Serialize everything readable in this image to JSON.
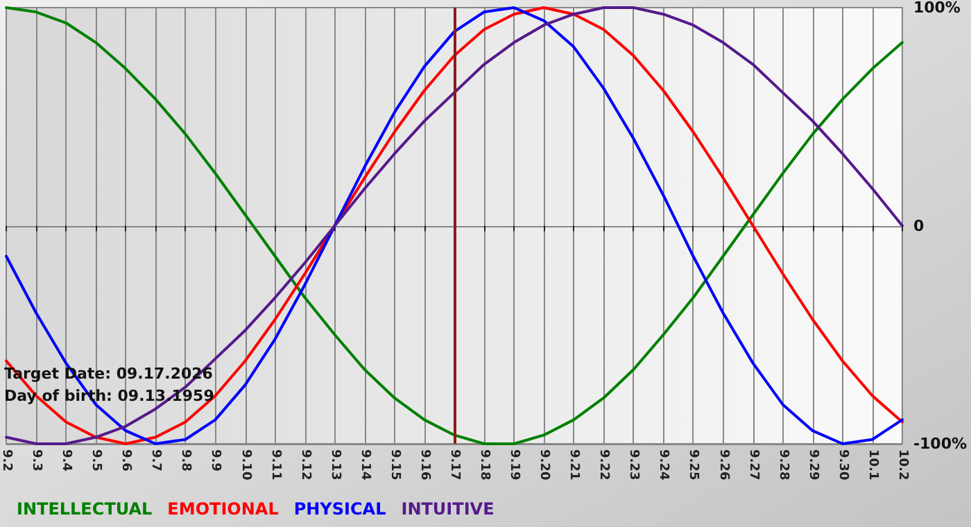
{
  "chart_data": {
    "type": "line",
    "categories": [
      "9.2",
      "9.3",
      "9.4",
      "9.5",
      "9.6",
      "9.7",
      "9.8",
      "9.9",
      "9.10",
      "9.11",
      "9.12",
      "9.13",
      "9.14",
      "9.15",
      "9.16",
      "9.17",
      "9.18",
      "9.19",
      "9.20",
      "9.21",
      "9.22",
      "9.23",
      "9.24",
      "9.25",
      "9.26",
      "9.27",
      "9.28",
      "9.29",
      "9.30",
      "10.1",
      "10.2"
    ],
    "series": [
      {
        "name": "INTELLECTUAL",
        "color": "#008000",
        "values": [
          100,
          98,
          93,
          84,
          72,
          58,
          42,
          24,
          5,
          -14,
          -33,
          -50,
          -66,
          -79,
          -89,
          -96,
          -100,
          -100,
          -96,
          -89,
          -79,
          -66,
          -50,
          -33,
          -14,
          5,
          24,
          42,
          58,
          72,
          84
        ]
      },
      {
        "name": "EMOTIONAL",
        "color": "#ff0000",
        "values": [
          -62,
          -78,
          -90,
          -97,
          -100,
          -97,
          -90,
          -78,
          -62,
          -43,
          -22,
          0,
          22,
          43,
          62,
          78,
          90,
          97,
          100,
          97,
          90,
          78,
          62,
          43,
          22,
          0,
          -22,
          -43,
          -62,
          -78,
          -90
        ]
      },
      {
        "name": "PHYSICAL",
        "color": "#0000ff",
        "values": [
          -14,
          -40,
          -63,
          -82,
          -94,
          -100,
          -98,
          -89,
          -73,
          -52,
          -27,
          0,
          27,
          52,
          73,
          89,
          98,
          100,
          94,
          82,
          63,
          40,
          14,
          -14,
          -40,
          -63,
          -82,
          -94,
          -100,
          -98,
          -89
        ]
      },
      {
        "name": "INTUITIVE",
        "color": "#551a8b",
        "values": [
          -97,
          -100,
          -100,
          -97,
          -92,
          -84,
          -74,
          -61,
          -48,
          -33,
          -17,
          0,
          17,
          33,
          48,
          61,
          74,
          84,
          92,
          97,
          100,
          100,
          97,
          92,
          84,
          74,
          61,
          48,
          33,
          17,
          0
        ]
      }
    ],
    "ylim": [
      -100,
      100
    ],
    "yticks": [
      {
        "value": -100,
        "label": "-100%"
      },
      0,
      {
        "value": 100,
        "label": "100%"
      }
    ],
    "grid": true,
    "legend": "bottom left",
    "marker": "none",
    "line_style": "solid",
    "ref_lines": [
      {
        "axis": "x",
        "value": "9.17",
        "color": "#8b1a1a"
      }
    ],
    "annotations": [
      "Target Date: 09.17.2026",
      "Day of birth: 09.13.1959"
    ]
  }
}
